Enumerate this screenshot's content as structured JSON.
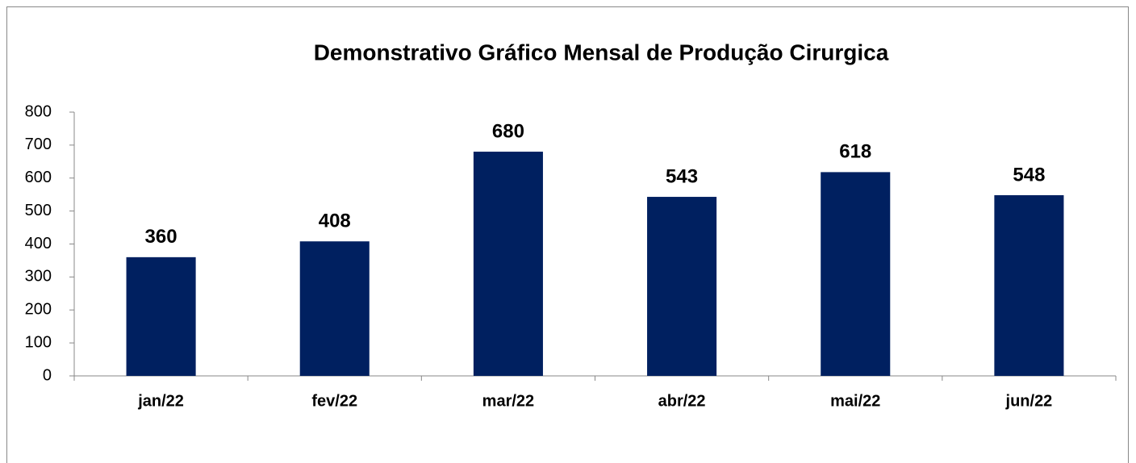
{
  "chart_data": {
    "type": "bar",
    "title": "Demonstrativo Gráfico Mensal de Produção Cirurgica",
    "categories": [
      "jan/22",
      "fev/22",
      "mar/22",
      "abr/22",
      "mai/22",
      "jun/22"
    ],
    "values": [
      360,
      408,
      680,
      543,
      618,
      548
    ],
    "color": "#002060",
    "ylim": [
      0,
      800
    ],
    "yticks": [
      0,
      100,
      200,
      300,
      400,
      500,
      600,
      700,
      800
    ],
    "grid": false
  }
}
